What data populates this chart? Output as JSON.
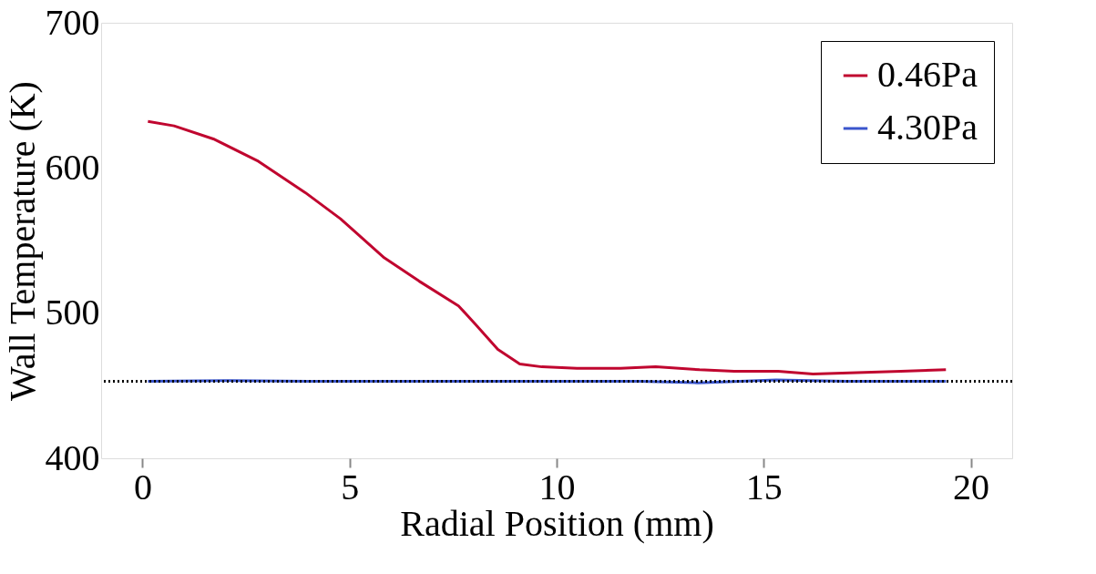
{
  "chart_data": {
    "type": "line",
    "xlabel": "Radial Position (mm)",
    "ylabel": "Wall Temperature (K)",
    "xlim": [
      -1,
      21
    ],
    "xticks": [
      0,
      5,
      10,
      15,
      20
    ],
    "ylim": [
      400,
      700
    ],
    "yticks": [
      400,
      500,
      600,
      700
    ],
    "grid": false,
    "legend": "top right",
    "marker": "none",
    "line_style": "solid",
    "series": [
      {
        "name": "0.46Pa",
        "color": "#c0062f",
        "x": [
          0.13,
          0.76,
          1.71,
          2.77,
          3.93,
          4.78,
          5.84,
          6.68,
          7.63,
          8.05,
          8.58,
          9.11,
          9.64,
          10.49,
          11.54,
          12.39,
          13.45,
          14.29,
          15.35,
          16.19,
          17.25,
          18.31,
          19.4
        ],
        "values": [
          632,
          629,
          620,
          605,
          583,
          565,
          538,
          522,
          505,
          492,
          475,
          465,
          463,
          462,
          462,
          463,
          461,
          460,
          460,
          458,
          459,
          460,
          461
        ]
      },
      {
        "name": "4.30Pa",
        "color": "#3a55cc",
        "x": [
          0.13,
          2,
          4,
          6,
          8,
          10,
          12,
          13.4,
          15.3,
          17,
          19.4
        ],
        "values": [
          453,
          453.5,
          453,
          453,
          453,
          453,
          453,
          452,
          454,
          453,
          453
        ]
      }
    ],
    "ref_lines": [
      {
        "axis": "y",
        "value": 453,
        "color": "#000000",
        "line_style": "dotted"
      }
    ]
  }
}
